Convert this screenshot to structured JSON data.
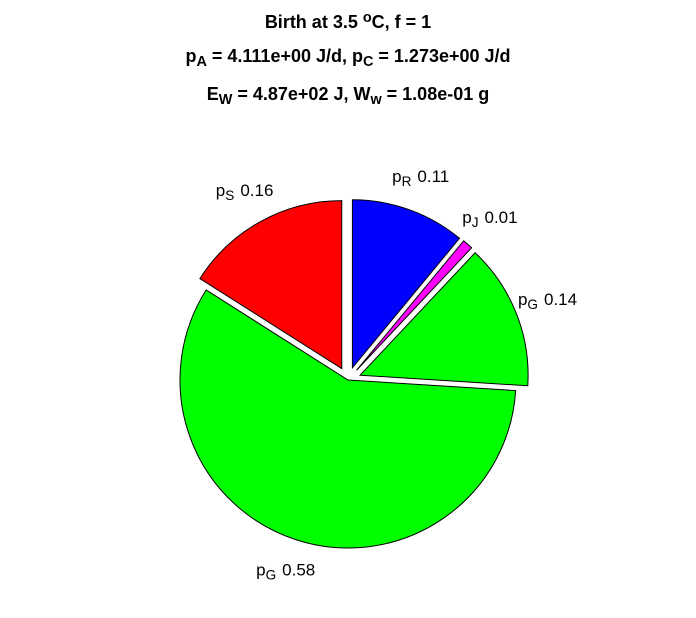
{
  "chart_data": {
    "type": "pie",
    "title": [
      [
        {
          "text": "Birth at 3.5 "
        },
        {
          "text": "o",
          "script": "sup"
        },
        {
          "text": "C, f = 1"
        }
      ],
      [
        {
          "text": "p"
        },
        {
          "text": "A",
          "script": "sub"
        },
        {
          "text": " = 4.111e+00 J/d, p"
        },
        {
          "text": "C",
          "script": "sub"
        },
        {
          "text": " = 1.273e+00 J/d"
        }
      ],
      [
        {
          "text": "E"
        },
        {
          "text": "W",
          "script": "sub"
        },
        {
          "text": " = 4.87e+02 J, W"
        },
        {
          "text": "w",
          "script": "sub"
        },
        {
          "text": " = 1.08e-01 g"
        }
      ]
    ],
    "categories": [
      [
        {
          "text": "p"
        },
        {
          "text": "R",
          "script": "sub"
        }
      ],
      [
        {
          "text": "p"
        },
        {
          "text": "J",
          "script": "sub"
        }
      ],
      [
        {
          "text": "p"
        },
        {
          "text": "G",
          "script": "sub"
        }
      ],
      [
        {
          "text": "p"
        },
        {
          "text": "G",
          "script": "sub"
        }
      ],
      [
        {
          "text": "p"
        },
        {
          "text": "S",
          "script": "sub"
        }
      ]
    ],
    "values": [
      0.11,
      0.01,
      0.14,
      0.58,
      0.16
    ],
    "colors": [
      "#0000ff",
      "#ff00ff",
      "#00ff00",
      "#00ff00",
      "#ff0000"
    ],
    "explode": [
      true,
      true,
      true,
      false,
      true
    ]
  }
}
